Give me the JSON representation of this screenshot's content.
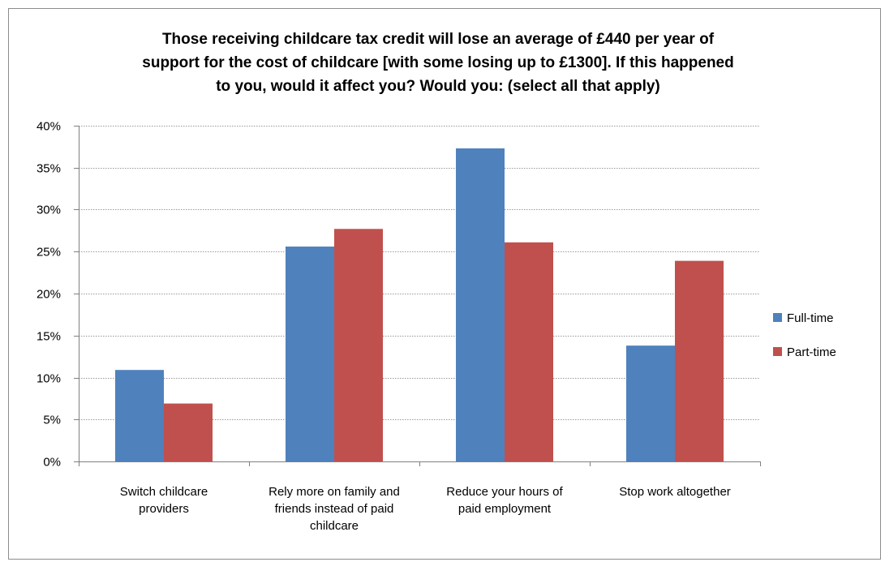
{
  "chart_data": {
    "type": "bar",
    "title_lines": [
      "Those receiving childcare tax credit will lose an average of £440 per year of",
      "support for the cost of childcare [with some losing up to £1300]. If this happened",
      "to you, would it affect you? Would you: (select all that apply)"
    ],
    "categories": [
      [
        "Switch childcare",
        "providers"
      ],
      [
        "Rely more on family and",
        "friends instead of paid",
        "childcare"
      ],
      [
        "Reduce your hours of",
        "paid employment"
      ],
      [
        "Stop work altogether"
      ]
    ],
    "series": [
      {
        "name": "Full-time",
        "color": "#4f81bd",
        "values": [
          0.109,
          0.256,
          0.373,
          0.138
        ]
      },
      {
        "name": "Part-time",
        "color": "#c0504d",
        "values": [
          0.069,
          0.277,
          0.261,
          0.239
        ]
      }
    ],
    "ylim": [
      0,
      0.4
    ],
    "yticks": [
      "0%",
      "5%",
      "10%",
      "15%",
      "20%",
      "25%",
      "30%",
      "35%",
      "40%"
    ],
    "grid": true,
    "legend": "right"
  }
}
